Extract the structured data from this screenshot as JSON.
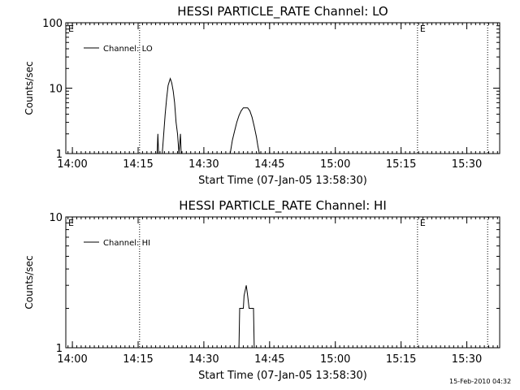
{
  "footer": {
    "timestamp": "15-Feb-2010 04:32"
  },
  "chart_data": [
    {
      "type": "line",
      "title": "HESSI PARTICLE_RATE Channel: LO",
      "xlabel": "Start Time (07-Jan-05 13:58:30)",
      "ylabel": "Counts/sec",
      "yscale": "log",
      "ylim": [
        1,
        100
      ],
      "xlim": [
        "13:58:30",
        "15:37:30"
      ],
      "xticks": [
        "14:00",
        "14:15",
        "14:30",
        "14:45",
        "15:00",
        "15:15",
        "15:30"
      ],
      "yticks": [
        "1",
        "10",
        "100"
      ],
      "legend": {
        "position": "top-left",
        "entries": [
          "Channel: LO"
        ]
      },
      "markers": [
        {
          "time": "13:58:30",
          "label": "E"
        },
        {
          "time": "14:15:20",
          "label": ""
        },
        {
          "time": "15:18:45",
          "label": "E"
        },
        {
          "time": "15:34:45",
          "label": ""
        }
      ],
      "series": [
        {
          "name": "Channel: LO",
          "points": [
            [
              "14:19:20",
              1
            ],
            [
              "14:19:30",
              2
            ],
            [
              "14:19:40",
              1
            ],
            [
              "14:20:30",
              1
            ],
            [
              "14:20:50",
              2
            ],
            [
              "14:21:10",
              4
            ],
            [
              "14:21:30",
              7
            ],
            [
              "14:21:50",
              11
            ],
            [
              "14:22:10",
              13
            ],
            [
              "14:22:20",
              14
            ],
            [
              "14:22:40",
              12
            ],
            [
              "14:23:00",
              9
            ],
            [
              "14:23:20",
              6
            ],
            [
              "14:23:40",
              3
            ],
            [
              "14:24:00",
              2
            ],
            [
              "14:24:20",
              1
            ],
            [
              "14:24:40",
              2
            ],
            [
              "14:24:50",
              1
            ],
            [
              "14:36:00",
              1
            ],
            [
              "14:36:30",
              1.6
            ],
            [
              "14:37:00",
              2.2
            ],
            [
              "14:37:30",
              3
            ],
            [
              "14:38:00",
              3.8
            ],
            [
              "14:38:30",
              4.5
            ],
            [
              "14:39:00",
              5
            ],
            [
              "14:40:00",
              5
            ],
            [
              "14:40:30",
              4.5
            ],
            [
              "14:41:00",
              3.6
            ],
            [
              "14:41:30",
              2.6
            ],
            [
              "14:42:00",
              1.8
            ],
            [
              "14:42:20",
              1.3
            ],
            [
              "14:42:40",
              1
            ]
          ]
        }
      ]
    },
    {
      "type": "line",
      "title": "HESSI PARTICLE_RATE Channel: HI",
      "xlabel": "Start Time (07-Jan-05 13:58:30)",
      "ylabel": "Counts/sec",
      "yscale": "log",
      "ylim": [
        1,
        10
      ],
      "xlim": [
        "13:58:30",
        "15:37:30"
      ],
      "xticks": [
        "14:00",
        "14:15",
        "14:30",
        "14:45",
        "15:00",
        "15:15",
        "15:30"
      ],
      "yticks": [
        "1",
        "10"
      ],
      "legend": {
        "position": "top-left",
        "entries": [
          "Channel: HI"
        ]
      },
      "markers": [
        {
          "time": "13:58:30",
          "label": "E"
        },
        {
          "time": "14:15:20",
          "label": ""
        },
        {
          "time": "15:18:45",
          "label": "E"
        },
        {
          "time": "15:34:45",
          "label": ""
        }
      ],
      "series": [
        {
          "name": "Channel: HI",
          "points": [
            [
              "14:38:00",
              1
            ],
            [
              "14:38:10",
              2
            ],
            [
              "14:39:00",
              2
            ],
            [
              "14:39:10",
              2.5
            ],
            [
              "14:39:40",
              3
            ],
            [
              "14:40:00",
              2.5
            ],
            [
              "14:40:20",
              2
            ],
            [
              "14:41:20",
              2
            ],
            [
              "14:41:30",
              1
            ]
          ]
        }
      ]
    }
  ]
}
